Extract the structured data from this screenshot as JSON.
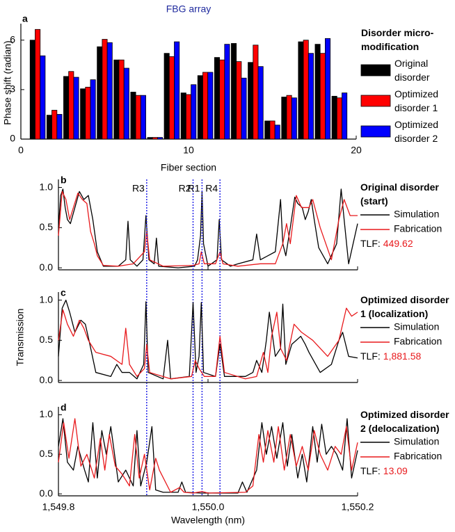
{
  "chart_data": [
    {
      "type": "bar",
      "panel": "a",
      "title": "FBG array",
      "xlabel": "Fiber section",
      "ylabel": "Phase shift (radian)",
      "x": [
        1,
        2,
        3,
        4,
        5,
        6,
        7,
        8,
        9,
        10,
        11,
        12,
        13,
        14,
        15,
        16,
        17,
        18,
        19
      ],
      "xlim": [
        0,
        20
      ],
      "xticks": [
        0,
        10,
        20
      ],
      "ylim": [
        0,
        7
      ],
      "yticks": [
        0,
        3,
        6
      ],
      "legend_title": "Disorder micro-modification",
      "series": [
        {
          "name": "Original disorder",
          "color": "#000000",
          "values": [
            6.0,
            1.45,
            3.8,
            3.05,
            5.6,
            4.8,
            2.85,
            0.1,
            5.2,
            2.8,
            3.85,
            4.95,
            5.8,
            4.65,
            1.1,
            2.55,
            5.9,
            5.75,
            2.6
          ]
        },
        {
          "name": "Optimized disorder 1",
          "color": "#ff0000",
          "values": [
            6.65,
            1.75,
            4.1,
            3.15,
            6.05,
            4.8,
            2.65,
            0.1,
            5.0,
            2.7,
            4.05,
            4.8,
            4.7,
            5.7,
            1.1,
            2.65,
            6.0,
            5.2,
            2.5
          ]
        },
        {
          "name": "Optimized disorder 2",
          "color": "#0000ff",
          "values": [
            5.05,
            1.5,
            3.75,
            3.6,
            5.85,
            4.3,
            2.65,
            0.1,
            5.9,
            3.3,
            4.05,
            5.75,
            3.7,
            4.4,
            0.85,
            2.5,
            5.2,
            6.1,
            2.8
          ]
        }
      ]
    },
    {
      "type": "line",
      "panel": "b",
      "xlim": [
        1549.8,
        1550.2
      ],
      "ylim": [
        -0.025,
        1.1
      ],
      "yticks": [
        {
          "value": 0,
          "label": "0.0"
        },
        {
          "value": 0.5,
          "label": "0.5"
        },
        {
          "value": 1,
          "label": "1.0"
        }
      ],
      "legend_title": "Original disorder (start)",
      "metric_name": "TLF:",
      "metric": 449.62,
      "vlines": [
        {
          "label": "R3",
          "x": 1549.918
        },
        {
          "label": "R2",
          "x": 1549.98
        },
        {
          "label": "R1",
          "x": 1549.992
        },
        {
          "label": "R4",
          "x": 1550.016
        }
      ],
      "series": [
        {
          "name": "Simulation",
          "color": "#000000",
          "x": [
            1549.8,
            1549.803,
            1549.806,
            1549.809,
            1549.812,
            1549.816,
            1549.822,
            1549.828,
            1549.834,
            1549.84,
            1549.846,
            1549.852,
            1549.86,
            1549.88,
            1549.89,
            1549.893,
            1549.896,
            1549.905,
            1549.913,
            1549.917,
            1549.921,
            1549.928,
            1549.931,
            1549.934,
            1549.96,
            1549.982,
            1549.986,
            1549.99,
            1549.992,
            1549.994,
            1550.0,
            1550.012,
            1550.015,
            1550.018,
            1550.03,
            1550.04,
            1550.06,
            1550.065,
            1550.07,
            1550.09,
            1550.097,
            1550.1,
            1550.104,
            1550.11,
            1550.116,
            1550.12,
            1550.126,
            1550.13,
            1550.134,
            1550.138,
            1550.142,
            1550.148,
            1550.16,
            1550.172,
            1550.178,
            1550.182,
            1550.188,
            1550.194,
            1550.2
          ],
          "values": [
            0.5,
            0.9,
            0.98,
            0.75,
            0.6,
            0.55,
            0.75,
            0.95,
            0.85,
            0.9,
            0.6,
            0.2,
            0.02,
            0.02,
            0.1,
            0.58,
            0.1,
            0.02,
            0.1,
            0.65,
            0.1,
            0.05,
            0.37,
            0.02,
            0,
            0.02,
            0.1,
            0.4,
            0.95,
            0.3,
            0.02,
            0.1,
            0.6,
            0.1,
            0.02,
            0.05,
            0.1,
            0.42,
            0.1,
            0.2,
            0.85,
            0.3,
            0.15,
            0.5,
            0.88,
            0.8,
            0.75,
            0.6,
            0.7,
            0.85,
            0.6,
            0.25,
            0.05,
            0.3,
            0.98,
            0.6,
            0.05,
            0.3,
            0.55
          ]
        },
        {
          "name": "Fabrication",
          "color": "#e8191c",
          "x": [
            1549.8,
            1549.805,
            1549.81,
            1549.815,
            1549.82,
            1549.826,
            1549.832,
            1549.838,
            1549.843,
            1549.848,
            1549.852,
            1549.86,
            1549.88,
            1549.9,
            1549.915,
            1549.918,
            1549.922,
            1549.94,
            1549.98,
            1549.988,
            1549.991,
            1549.995,
            1550.01,
            1550.016,
            1550.02,
            1550.04,
            1550.07,
            1550.09,
            1550.1,
            1550.105,
            1550.11,
            1550.118,
            1550.125,
            1550.135,
            1550.14,
            1550.15,
            1550.165,
            1550.175,
            1550.182,
            1550.19,
            1550.2
          ],
          "values": [
            0.4,
            0.95,
            0.85,
            0.6,
            0.75,
            0.93,
            0.85,
            0.8,
            0.45,
            0.3,
            0.15,
            0.03,
            0.02,
            0.05,
            0.2,
            0.45,
            0.1,
            0.02,
            0.03,
            0.05,
            0.2,
            0.05,
            0.05,
            0.2,
            0.05,
            0.02,
            0.05,
            0.05,
            0.3,
            0.55,
            0.3,
            0.9,
            0.75,
            0.75,
            0.85,
            0.5,
            0.1,
            0.6,
            0.85,
            0.65,
            0.65
          ]
        }
      ]
    },
    {
      "type": "line",
      "panel": "c",
      "xlim": [
        1549.8,
        1550.2
      ],
      "ylim": [
        -0.025,
        1.1
      ],
      "ylabel": "Transmission",
      "yticks": [
        {
          "value": 0,
          "label": "0.0"
        },
        {
          "value": 0.5,
          "label": "0.5"
        },
        {
          "value": 1,
          "label": "1.0"
        }
      ],
      "legend_title": "Optimized disorder 1 (localization)",
      "metric_name": "TLF:",
      "metric": 1881.58,
      "metric_label": "1,881.58",
      "series": [
        {
          "name": "Simulation",
          "color": "#000000",
          "x": [
            1549.8,
            1549.805,
            1549.81,
            1549.815,
            1549.822,
            1549.83,
            1549.836,
            1549.842,
            1549.85,
            1549.87,
            1549.878,
            1549.885,
            1549.895,
            1549.905,
            1549.914,
            1549.917,
            1549.92,
            1549.94,
            1549.946,
            1549.95,
            1549.975,
            1549.98,
            1549.984,
            1549.988,
            1549.991,
            1549.994,
            1550.01,
            1550.016,
            1550.022,
            1550.05,
            1550.06,
            1550.065,
            1550.072,
            1550.078,
            1550.082,
            1550.09,
            1550.097,
            1550.1,
            1550.104,
            1550.112,
            1550.118,
            1550.124,
            1550.13,
            1550.135,
            1550.15,
            1550.165,
            1550.175,
            1550.18,
            1550.188,
            1550.2
          ],
          "values": [
            0.3,
            0.9,
            1.0,
            0.85,
            0.6,
            0.75,
            0.7,
            0.45,
            0.1,
            0.05,
            0.2,
            0.1,
            0.1,
            0.02,
            0.2,
            0.98,
            0.1,
            0.02,
            0.5,
            0.02,
            0.05,
            0.97,
            0.1,
            0.3,
            0.97,
            0.1,
            0.05,
            0.45,
            0.05,
            0.05,
            0.1,
            0.25,
            0.1,
            0.5,
            0.85,
            0.3,
            0.4,
            0.95,
            0.2,
            0.45,
            0.5,
            0.55,
            0.45,
            0.35,
            0.1,
            0.2,
            0.5,
            0.6,
            0.3,
            0.28
          ]
        },
        {
          "name": "Fabrication",
          "color": "#e8191c",
          "x": [
            1549.8,
            1549.806,
            1549.812,
            1549.82,
            1549.828,
            1549.834,
            1549.84,
            1549.85,
            1549.87,
            1549.885,
            1549.89,
            1549.895,
            1549.905,
            1549.915,
            1549.918,
            1549.922,
            1549.95,
            1549.978,
            1549.983,
            1549.988,
            1549.995,
            1550.01,
            1550.016,
            1550.022,
            1550.05,
            1550.065,
            1550.074,
            1550.08,
            1550.085,
            1550.092,
            1550.097,
            1550.105,
            1550.115,
            1550.125,
            1550.14,
            1550.16,
            1550.175,
            1550.185,
            1550.192,
            1550.2
          ],
          "values": [
            0.5,
            0.88,
            0.7,
            0.55,
            0.75,
            0.65,
            0.5,
            0.35,
            0.3,
            0.2,
            0.65,
            0.2,
            0.05,
            0.15,
            0.45,
            0.1,
            0.02,
            0.05,
            0.25,
            0.15,
            0.05,
            0.05,
            0.55,
            0.1,
            0.02,
            0.05,
            0.35,
            0.1,
            0.55,
            0.85,
            0.4,
            0.25,
            0.7,
            0.6,
            0.5,
            0.3,
            0.5,
            0.9,
            0.8,
            0.85
          ]
        }
      ]
    },
    {
      "type": "line",
      "panel": "d",
      "xlim": [
        1549.8,
        1550.2
      ],
      "ylim": [
        -0.025,
        1.1
      ],
      "xlabel": "Wavelength (nm)",
      "xticks": [
        {
          "value": 1549.8,
          "label": "1,549.8"
        },
        {
          "value": 1550.0,
          "label": "1,550.0"
        },
        {
          "value": 1550.2,
          "label": "1,550.2"
        }
      ],
      "yticks": [
        {
          "value": 0,
          "label": "0.0"
        },
        {
          "value": 0.5,
          "label": "0.5"
        },
        {
          "value": 1,
          "label": "1.0"
        }
      ],
      "legend_title": "Optimized disorder 2 (delocalization)",
      "metric_name": "TLF:",
      "metric": 13.09,
      "series": [
        {
          "name": "Simulation",
          "color": "#000000",
          "x": [
            1549.8,
            1549.806,
            1549.812,
            1549.82,
            1549.826,
            1549.835,
            1549.84,
            1549.846,
            1549.852,
            1549.858,
            1549.864,
            1549.87,
            1549.88,
            1549.89,
            1549.9,
            1549.905,
            1549.91,
            1549.918,
            1549.925,
            1549.93,
            1549.94,
            1549.96,
            1549.965,
            1549.97,
            1549.99,
            1550.04,
            1550.046,
            1550.052,
            1550.065,
            1550.072,
            1550.078,
            1550.085,
            1550.092,
            1550.1,
            1550.106,
            1550.112,
            1550.12,
            1550.126,
            1550.132,
            1550.14,
            1550.146,
            1550.152,
            1550.158,
            1550.165,
            1550.172,
            1550.18,
            1550.186,
            1550.192,
            1550.2
          ],
          "values": [
            0.6,
            0.95,
            0.4,
            0.3,
            0.6,
            0.3,
            0.15,
            0.9,
            0.2,
            0.8,
            0.5,
            0.85,
            0.15,
            0.3,
            0.1,
            0.8,
            0.1,
            0.4,
            0.85,
            0.05,
            0.02,
            0.02,
            0.15,
            0.02,
            0.01,
            0.01,
            0.15,
            0.02,
            0.3,
            0.9,
            0.5,
            0.85,
            0.45,
            0.9,
            0.35,
            0.75,
            0.2,
            0.5,
            0.15,
            0.85,
            0.4,
            0.88,
            0.5,
            0.6,
            0.5,
            0.3,
            0.95,
            0.2,
            0.55
          ]
        },
        {
          "name": "Fabrication",
          "color": "#e8191c",
          "x": [
            1549.8,
            1549.807,
            1549.814,
            1549.822,
            1549.83,
            1549.838,
            1549.848,
            1549.856,
            1549.862,
            1549.868,
            1549.876,
            1549.885,
            1549.895,
            1549.902,
            1549.908,
            1549.915,
            1549.922,
            1549.93,
            1549.935,
            1549.95,
            1549.962,
            1549.968,
            1549.98,
            1549.992,
            1550.0,
            1550.05,
            1550.06,
            1550.068,
            1550.074,
            1550.08,
            1550.088,
            1550.094,
            1550.102,
            1550.11,
            1550.118,
            1550.126,
            1550.134,
            1550.142,
            1550.15,
            1550.16,
            1550.17,
            1550.178,
            1550.185,
            1550.192,
            1550.2
          ],
          "values": [
            0.4,
            0.9,
            0.45,
            0.95,
            0.35,
            0.5,
            0.2,
            0.7,
            0.3,
            0.75,
            0.35,
            0.25,
            0.1,
            0.75,
            0.2,
            0.5,
            0.05,
            0.45,
            0.3,
            0.02,
            0.08,
            0.02,
            0.01,
            0.03,
            0.01,
            0.02,
            0.1,
            0.75,
            0.4,
            0.8,
            0.4,
            0.85,
            0.3,
            0.75,
            0.35,
            0.6,
            0.3,
            0.8,
            0.5,
            0.3,
            0.6,
            0.5,
            0.85,
            0.3,
            0.65
          ]
        }
      ]
    }
  ]
}
